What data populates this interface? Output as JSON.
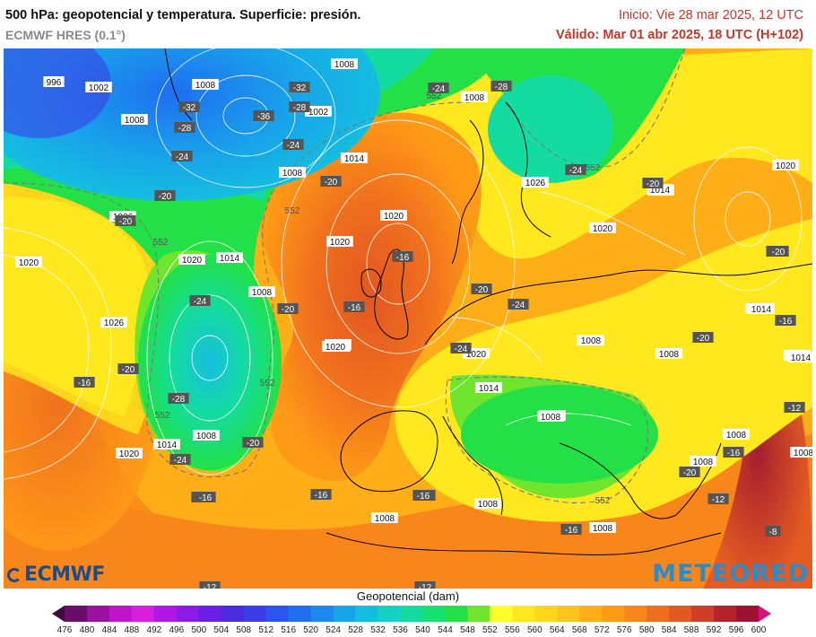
{
  "header": {
    "title": "500 hPa: geopotencial y temperatura. Superficie: presión.",
    "model": "ECMWF HRES (0.1°)",
    "init": "Inicio: Vie 28 mar 2025, 12 UTC",
    "valid": "Válido: Mar 01 abr 2025, 18 UTC (H+102)"
  },
  "logos": {
    "left": "ECMWF",
    "right": "METEORED"
  },
  "legend": {
    "title": "Geopotencial (dam)",
    "ticks": [
      "476",
      "480",
      "484",
      "488",
      "492",
      "496",
      "500",
      "504",
      "508",
      "512",
      "516",
      "520",
      "524",
      "528",
      "532",
      "536",
      "540",
      "544",
      "548",
      "552",
      "556",
      "560",
      "564",
      "568",
      "572",
      "576",
      "580",
      "584",
      "588",
      "592",
      "596",
      "600"
    ],
    "colors": [
      "#3a0d3a",
      "#6b0d6b",
      "#9a10a0",
      "#c014c8",
      "#d81fe0",
      "#b018e8",
      "#8c1ae8",
      "#6a1ee6",
      "#4b2ae0",
      "#3a3ee8",
      "#2c55ee",
      "#1f6ef0",
      "#1d88ee",
      "#18a4ea",
      "#14bedf",
      "#12d2c6",
      "#14dca0",
      "#18df72",
      "#22e046",
      "#6fe52e",
      "#ffff2a",
      "#ffe81e",
      "#ffd61c",
      "#ffc41a",
      "#ffae18",
      "#ff9a16",
      "#f8861a",
      "#ef6e1e",
      "#e25722",
      "#cf3d26",
      "#b8222a",
      "#9c1230",
      "#d8127a"
    ]
  },
  "map_labels": {
    "isobars": [
      "996",
      "1002",
      "1008",
      "1008",
      "1008",
      "1002",
      "1008",
      "1014",
      "1008",
      "1020",
      "1014",
      "1026",
      "1020",
      "1020",
      "1026",
      "1014",
      "1008",
      "1020",
      "1014",
      "1020",
      "1026",
      "1020",
      "1014",
      "1008",
      "1014",
      "1008",
      "1014",
      "1020",
      "1014",
      "1008",
      "1014",
      "1014",
      "1008",
      "1020",
      "1008",
      "1014",
      "1008",
      "1008",
      "1008",
      "1008",
      "1008",
      "1020",
      "1008",
      "1014",
      "1014"
    ],
    "temps": [
      "-32",
      "-32",
      "-36",
      "-28",
      "-28",
      "-24",
      "-24",
      "-24",
      "-20",
      "-20",
      "-24",
      "-20",
      "-20",
      "-16",
      "-24",
      "-20",
      "-28",
      "-24",
      "-20",
      "-16",
      "-20",
      "-24",
      "-16",
      "-24",
      "-20",
      "-20",
      "-16",
      "-28",
      "-20",
      "-16",
      "-16",
      "-16",
      "-16",
      "-16",
      "-20",
      "-16",
      "-12",
      "-12",
      "-12",
      "-12",
      "-8",
      "-16",
      "-20"
    ],
    "contours": [
      "552",
      "552",
      "552",
      "552",
      "552",
      "552",
      "552",
      "552"
    ]
  }
}
